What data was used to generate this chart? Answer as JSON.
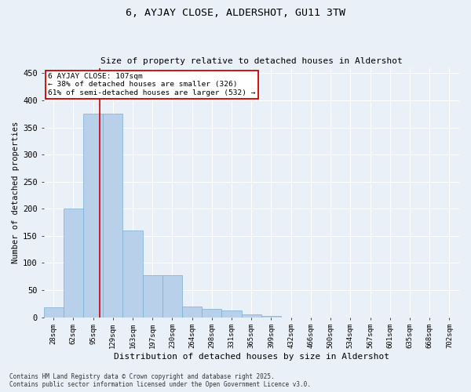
{
  "title": "6, AYJAY CLOSE, ALDERSHOT, GU11 3TW",
  "subtitle": "Size of property relative to detached houses in Aldershot",
  "xlabel": "Distribution of detached houses by size in Aldershot",
  "ylabel": "Number of detached properties",
  "bar_color": "#b8d0ea",
  "bar_edge_color": "#7aafd4",
  "categories": [
    "28sqm",
    "62sqm",
    "95sqm",
    "129sqm",
    "163sqm",
    "197sqm",
    "230sqm",
    "264sqm",
    "298sqm",
    "331sqm",
    "365sqm",
    "399sqm",
    "432sqm",
    "466sqm",
    "500sqm",
    "534sqm",
    "567sqm",
    "601sqm",
    "635sqm",
    "668sqm",
    "702sqm"
  ],
  "values": [
    18,
    200,
    375,
    375,
    160,
    78,
    78,
    20,
    15,
    13,
    5,
    2,
    0,
    0,
    0,
    0,
    0,
    0,
    0,
    0,
    0
  ],
  "ylim": [
    0,
    460
  ],
  "yticks": [
    0,
    50,
    100,
    150,
    200,
    250,
    300,
    350,
    400,
    450
  ],
  "annotation_title": "6 AYJAY CLOSE: 107sqm",
  "annotation_line1": "← 38% of detached houses are smaller (326)",
  "annotation_line2": "61% of semi-detached houses are larger (532) →",
  "annotation_box_color": "#ffffff",
  "annotation_box_edge": "#cc0000",
  "vline_color": "#cc0000",
  "footer_line1": "Contains HM Land Registry data © Crown copyright and database right 2025.",
  "footer_line2": "Contains public sector information licensed under the Open Government Licence v3.0.",
  "bg_color": "#eaf0f8",
  "grid_color": "#ffffff"
}
